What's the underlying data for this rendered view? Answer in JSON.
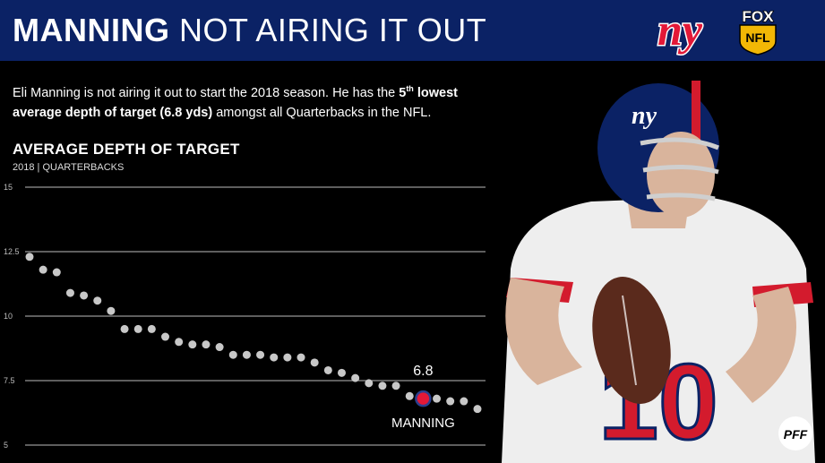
{
  "header": {
    "title_bold": "MANNING",
    "title_rest": "NOT AIRING IT OUT",
    "bg_color": "#0b2265"
  },
  "logos": {
    "team": "ny",
    "network_line1": "FOX",
    "network_line2": "NFL"
  },
  "intro": {
    "part1": "Eli Manning is not airing it out to start the 2018 season. He has the ",
    "rank": "5",
    "rank_suffix": "th",
    "bold_text": " lowest average depth of target (6.8 yds)",
    "part2": " amongst all Quarterbacks in the NFL."
  },
  "chart_data": {
    "type": "scatter",
    "title": "AVERAGE DEPTH OF TARGET",
    "subtitle": "2018 | QUARTERBACKS",
    "y_ticks": [
      "15",
      "12.5",
      "10",
      "7.5",
      "5"
    ],
    "ylim": [
      5,
      15
    ],
    "grid": true,
    "values": [
      12.3,
      11.8,
      11.7,
      10.9,
      10.8,
      10.6,
      10.2,
      9.5,
      9.5,
      9.5,
      9.2,
      9.0,
      8.9,
      8.9,
      8.8,
      8.5,
      8.5,
      8.5,
      8.4,
      8.4,
      8.4,
      8.2,
      7.9,
      7.8,
      7.6,
      7.4,
      7.3,
      7.3,
      6.9,
      6.8,
      6.8,
      6.7,
      6.7,
      6.4
    ],
    "highlight": {
      "index": 29,
      "value_label": "6.8",
      "name": "MANNING",
      "color": "#e31837"
    },
    "dot_color": "#c8c8c8"
  },
  "watermark": "PFF"
}
